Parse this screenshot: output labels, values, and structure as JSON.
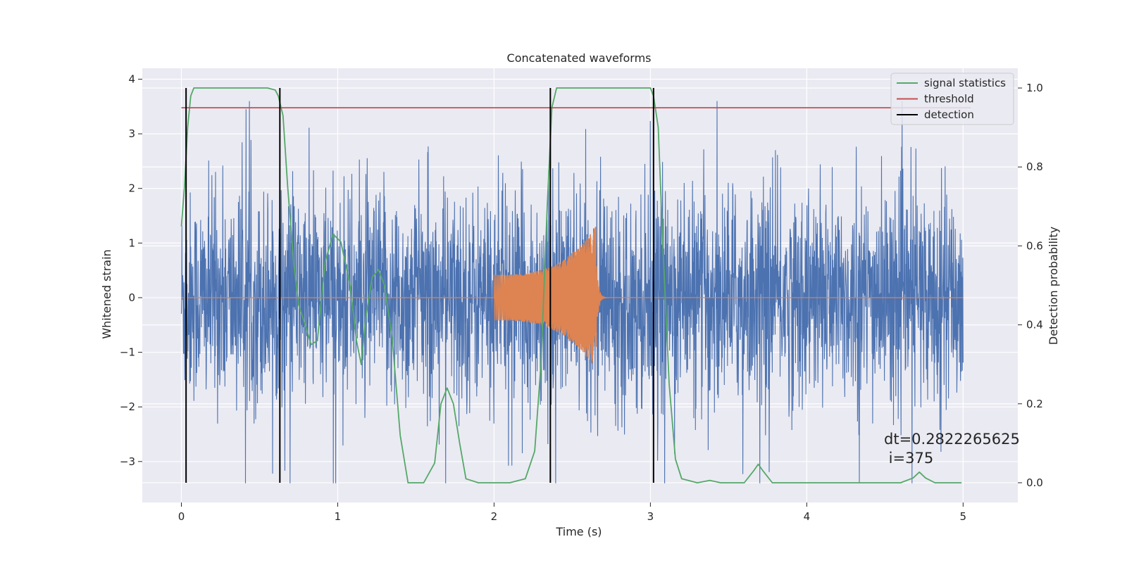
{
  "chart_data": {
    "type": "line",
    "title": "Concatenated waveforms",
    "xlabel": "Time (s)",
    "ylabel": "Whitened strain",
    "y2label": "Detection probability",
    "xlim": [
      -0.25,
      5.35
    ],
    "ylim": [
      -3.75,
      4.2
    ],
    "y2lim": [
      -0.05,
      1.05
    ],
    "xticks": [
      0,
      1,
      2,
      3,
      4,
      5
    ],
    "xtick_labels": [
      "0",
      "1",
      "2",
      "3",
      "4",
      "5"
    ],
    "yticks": [
      -3,
      -2,
      -1,
      0,
      1,
      2,
      3,
      4
    ],
    "ytick_labels": [
      "−3",
      "−2",
      "−1",
      "0",
      "1",
      "2",
      "3",
      "4"
    ],
    "y2ticks": [
      0.0,
      0.2,
      0.4,
      0.6,
      0.8,
      1.0
    ],
    "y2tick_labels": [
      "0.0",
      "0.2",
      "0.4",
      "0.6",
      "0.8",
      "1.0"
    ],
    "grid": true,
    "legend_position": "top-right",
    "legend": [
      {
        "label": "signal statistics",
        "color": "#55a868"
      },
      {
        "label": "threshold",
        "color": "#c44e52"
      },
      {
        "label": "detection",
        "color": "#000000"
      }
    ],
    "colors": {
      "strain": "#4c72b0",
      "injection": "#dd8452",
      "signal_statistics": "#55a868",
      "threshold": "#c44e52",
      "detection": "#000000",
      "axes_bg": "#eaeaf2",
      "grid": "#ffffff"
    },
    "series": [
      {
        "name": "signal statistics",
        "axis": "right",
        "x": [
          0.0,
          0.02,
          0.04,
          0.06,
          0.08,
          0.1,
          0.2,
          0.4,
          0.55,
          0.6,
          0.62,
          0.65,
          0.68,
          0.72,
          0.75,
          0.8,
          0.83,
          0.87,
          0.92,
          0.97,
          1.02,
          1.08,
          1.12,
          1.15,
          1.18,
          1.22,
          1.26,
          1.3,
          1.35,
          1.4,
          1.45,
          1.55,
          1.62,
          1.66,
          1.7,
          1.74,
          1.78,
          1.82,
          1.9,
          2.1,
          2.2,
          2.26,
          2.3,
          2.34,
          2.37,
          2.4,
          2.5,
          3.0,
          3.02,
          3.05,
          3.08,
          3.12,
          3.16,
          3.2,
          3.3,
          3.38,
          3.45,
          3.6,
          3.66,
          3.69,
          3.72,
          3.78,
          3.9,
          4.6,
          4.68,
          4.72,
          4.76,
          4.82,
          4.9,
          4.99
        ],
        "y": [
          0.65,
          0.75,
          0.9,
          0.98,
          1.0,
          1.0,
          1.0,
          1.0,
          1.0,
          0.995,
          0.98,
          0.93,
          0.75,
          0.55,
          0.45,
          0.39,
          0.35,
          0.36,
          0.56,
          0.63,
          0.61,
          0.5,
          0.36,
          0.3,
          0.42,
          0.52,
          0.54,
          0.5,
          0.36,
          0.12,
          0.0,
          0.0,
          0.05,
          0.2,
          0.24,
          0.2,
          0.1,
          0.01,
          0.0,
          0.0,
          0.01,
          0.08,
          0.3,
          0.7,
          0.95,
          1.0,
          1.0,
          1.0,
          0.98,
          0.9,
          0.6,
          0.25,
          0.06,
          0.01,
          0.0,
          0.006,
          0.0,
          0.0,
          0.03,
          0.047,
          0.03,
          0.0,
          0.0,
          0.0,
          0.012,
          0.027,
          0.012,
          0.0,
          0.0,
          0.0
        ]
      },
      {
        "name": "threshold",
        "axis": "right",
        "x": [
          0.0,
          5.05
        ],
        "y": [
          0.95,
          0.95
        ]
      },
      {
        "name": "detection",
        "axis": "right",
        "type": "vlines",
        "x": [
          0.03,
          0.63,
          2.36,
          3.02
        ],
        "y_range": [
          0.0,
          1.0
        ]
      },
      {
        "name": "",
        "axis": "left",
        "type": "noise",
        "x_range": [
          0.0,
          5.0
        ],
        "typical_range": [
          -1.5,
          1.5
        ],
        "max_range": [
          -3.4,
          3.6
        ]
      },
      {
        "name": "",
        "axis": "left",
        "type": "chirp",
        "x_range": [
          2.0,
          2.65
        ],
        "amplitude_start": 0.42,
        "amplitude_end": 1.3
      }
    ],
    "annotation": {
      "line1": "dt=0.2822265625",
      "line2": " i=375"
    }
  }
}
